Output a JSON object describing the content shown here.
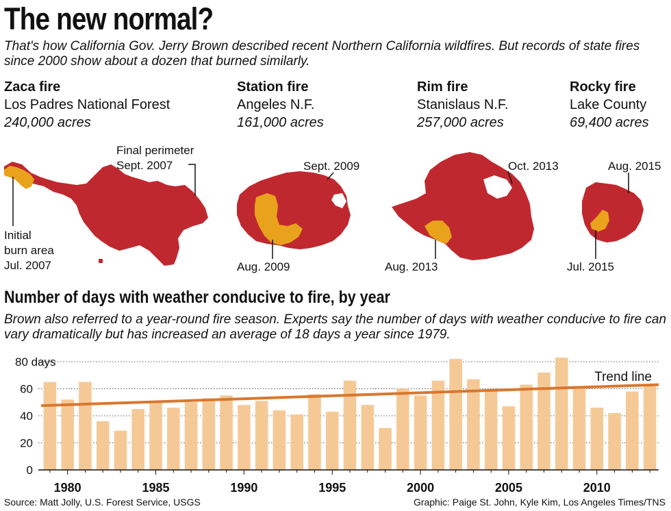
{
  "header": {
    "title": "The new normal?",
    "intro": "That's how California Gov. Jerry Brown described recent Northern California wildfires. But records of state fires since 2000 show about a dozen that burned similarly."
  },
  "fires": [
    {
      "name": "Zaca fire",
      "location": "Los Padres National Forest",
      "acres": "240,000 acres"
    },
    {
      "name": "Station fire",
      "location": "Angeles N.F.",
      "acres": "161,000 acres"
    },
    {
      "name": "Rim fire",
      "location": "Stanislaus N.F.",
      "acres": "257,000 acres"
    },
    {
      "name": "Rocky fire",
      "location": "Lake County",
      "acres": "69,400 acres"
    }
  ],
  "map_labels": {
    "zaca_final_1": "Final perimeter",
    "zaca_final_2": "Sept. 2007",
    "zaca_initial_1": "Initial",
    "zaca_initial_2": "burn area",
    "zaca_initial_3": "Jul. 2007",
    "station_final": "Sept. 2009",
    "station_initial": "Aug. 2009",
    "rim_final": "Oct. 2013",
    "rim_initial": "Aug. 2013",
    "rocky_final": "Aug. 2015",
    "rocky_initial": "Jul. 2015"
  },
  "colors": {
    "burn_final": "#c0282f",
    "burn_initial": "#e9a21c",
    "bar": "#f5c996",
    "trend": "#d9772e"
  },
  "section": {
    "title": "Number of days with weather conducive to fire, by year",
    "intro": "Brown also referred to a year-round fire season. Experts say the number of days with weather conducive to fire can vary dramatically but has increased an average of 18 days a year since 1979."
  },
  "chart_data": {
    "type": "bar",
    "title": "Number of days with weather conducive to fire, by year",
    "x": [
      1979,
      1980,
      1981,
      1982,
      1983,
      1984,
      1985,
      1986,
      1987,
      1988,
      1989,
      1990,
      1991,
      1992,
      1993,
      1994,
      1995,
      1996,
      1997,
      1998,
      1999,
      2000,
      2001,
      2002,
      2003,
      2004,
      2005,
      2006,
      2007,
      2008,
      2009,
      2010,
      2011,
      2012,
      2013
    ],
    "values": [
      65,
      52,
      65,
      36,
      29,
      45,
      50,
      46,
      50,
      53,
      55,
      48,
      51,
      44,
      41,
      56,
      43,
      66,
      48,
      31,
      60,
      55,
      66,
      82,
      67,
      58,
      47,
      63,
      72,
      83,
      62,
      46,
      42,
      58,
      63
    ],
    "ylim": [
      0,
      80
    ],
    "yticks": [
      0,
      20,
      40,
      60,
      80
    ],
    "ytick_labels": [
      "0",
      "20",
      "40",
      "60",
      "80 days"
    ],
    "xticks": [
      1980,
      1985,
      1990,
      1995,
      2000,
      2005,
      2010
    ],
    "trend": {
      "label": "Trend line",
      "start": [
        1979,
        47.5
      ],
      "end": [
        2013,
        63
      ]
    },
    "grid": true
  },
  "footer": {
    "source": "Source: Matt Jolly, U.S. Forest Service, USGS",
    "credit": "Graphic: Paige St. John, Kyle Kim, Los Angeles Times/TNS"
  }
}
